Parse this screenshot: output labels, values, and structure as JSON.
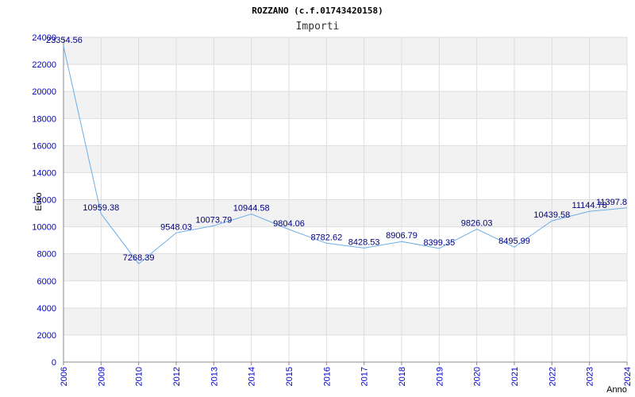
{
  "chart_data": {
    "type": "line",
    "title": "ROZZANO (c.f.01743420158)",
    "subtitle": "Importi",
    "xlabel": "Anno",
    "ylabel": "Euro",
    "ylim": [
      0,
      24000
    ],
    "yticks": [
      0,
      2000,
      4000,
      6000,
      8000,
      10000,
      12000,
      14000,
      16000,
      18000,
      20000,
      22000,
      24000
    ],
    "grid": true,
    "categories": [
      "2006",
      "2009",
      "2010",
      "2012",
      "2013",
      "2014",
      "2015",
      "2016",
      "2017",
      "2018",
      "2019",
      "2020",
      "2021",
      "2022",
      "2023",
      "2024"
    ],
    "values": [
      23354.56,
      10959.38,
      7268.39,
      9548.03,
      10073.79,
      10944.58,
      9804.06,
      8782.62,
      8428.53,
      8906.79,
      8399.35,
      9826.03,
      8495.99,
      10439.58,
      11144.78,
      11397.8
    ],
    "value_labels": [
      "23354.56",
      "10959.38",
      "7268.39",
      "9548.03",
      "10073.79",
      "10944.58",
      "9804.06",
      "8782.62",
      "8428.53",
      "8906.79",
      "8399.35",
      "9826.03",
      "8495.99",
      "10439.58",
      "11144.78",
      "11397.8"
    ],
    "colors": {
      "line": "#6aaee8",
      "band": "#f2f2f2",
      "grid": "#dddddd",
      "tick_text": "#0000cc",
      "label_text": "#000080"
    }
  }
}
